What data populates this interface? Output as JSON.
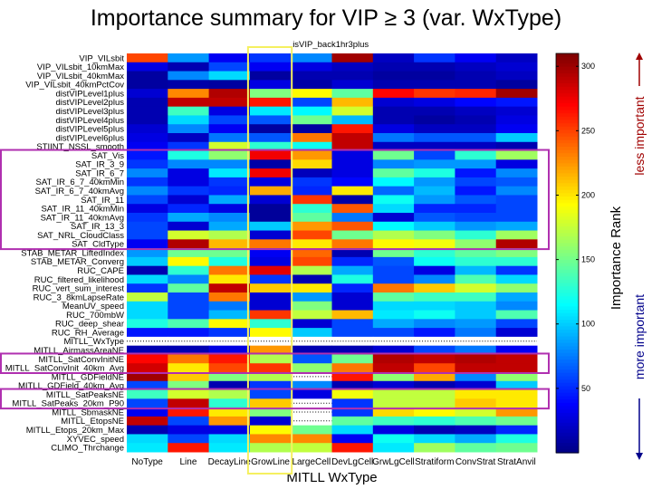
{
  "chart_data": {
    "type": "heatmap",
    "title": "Importance summary for VIP ≥ 3 (var. WxType)",
    "xlabel": "MITLL WxType",
    "colorbar_label": "Importance Rank",
    "colorbar_ticks": [
      300,
      250,
      200,
      150,
      100,
      50
    ],
    "colorbar_range": [
      0,
      310
    ],
    "colormap": "jet",
    "less_important_label": "less important",
    "more_important_label": "more important",
    "less_important_color": "#a00000",
    "more_important_color": "#00008b",
    "highlight_column_label": "isVIP_back1hr3plus",
    "highlight_column": "GrowLine",
    "highlight_column_color": "#f5f060",
    "highlight_rows_color": "#b030b0",
    "highlight_row_groups": [
      [
        "SAT_Vis",
        "SAT_CldType"
      ],
      [
        "MITLL_SatConvInitNE",
        "MITLL_SatConvInit_40km_Avg"
      ],
      [
        "MITLL_SatPeaksNE",
        "MITLL_SatPeaks_20km_P90"
      ]
    ],
    "columns": [
      "NoType",
      "Line",
      "DecayLine",
      "GrowLine",
      "LargeCell",
      "DevLgCell",
      "GrwLgCell",
      "Stratiform",
      "ConvStrat",
      "StratAnvil"
    ],
    "rows": [
      {
        "name": "VIP_VILsbit",
        "values": [
          250,
          85,
          35,
          55,
          80,
          300,
          20,
          55,
          35,
          20
        ]
      },
      {
        "name": "VIP_VILsbit_10kmMax",
        "values": [
          30,
          15,
          60,
          35,
          30,
          20,
          15,
          15,
          20,
          25
        ]
      },
      {
        "name": "VIP_VILsbit_40kmMax",
        "values": [
          10,
          80,
          105,
          10,
          15,
          15,
          10,
          10,
          15,
          20
        ]
      },
      {
        "name": "VIP_VILsbit_40kmPctCov",
        "values": [
          10,
          12,
          10,
          30,
          12,
          25,
          15,
          15,
          15,
          10
        ]
      },
      {
        "name": "distVIPLevel1plus",
        "values": [
          25,
          230,
          295,
          155,
          195,
          145,
          270,
          255,
          260,
          300
        ]
      },
      {
        "name": "distVIPLevel2plus",
        "values": [
          15,
          290,
          290,
          265,
          60,
          215,
          25,
          30,
          40,
          45
        ]
      },
      {
        "name": "distVIPLevel3plus",
        "values": [
          15,
          135,
          30,
          110,
          115,
          180,
          15,
          15,
          20,
          25
        ]
      },
      {
        "name": "distVIPLevel4plus",
        "values": [
          15,
          105,
          60,
          65,
          150,
          95,
          15,
          10,
          15,
          30
        ]
      },
      {
        "name": "distVIPLevel5plus",
        "values": [
          25,
          80,
          35,
          10,
          10,
          265,
          30,
          20,
          20,
          35
        ]
      },
      {
        "name": "distVIPLevel6plus",
        "values": [
          30,
          20,
          75,
          65,
          235,
          290,
          75,
          65,
          65,
          100
        ]
      },
      {
        "name": "STIINT_NSSL_smooth",
        "values": [
          35,
          55,
          180,
          130,
          120,
          290,
          20,
          20,
          20,
          15
        ]
      },
      {
        "name": "SAT_Vis",
        "values": [
          45,
          125,
          160,
          275,
          225,
          30,
          150,
          60,
          130,
          165
        ]
      },
      {
        "name": "SAT_IR_3_9",
        "values": [
          55,
          80,
          80,
          12,
          205,
          30,
          80,
          85,
          85,
          30
        ]
      },
      {
        "name": "SAT_IR_6_7",
        "values": [
          80,
          30,
          110,
          275,
          18,
          30,
          145,
          125,
          45,
          80
        ]
      },
      {
        "name": "SAT_IR_6_7_40kmMin",
        "values": [
          55,
          30,
          55,
          30,
          55,
          40,
          115,
          85,
          60,
          65
        ]
      },
      {
        "name": "SAT_IR_6_7_40kmAvg",
        "values": [
          80,
          55,
          50,
          220,
          50,
          200,
          70,
          95,
          45,
          80
        ]
      },
      {
        "name": "SAT_IR_11",
        "values": [
          60,
          25,
          90,
          25,
          255,
          12,
          120,
          85,
          65,
          60
        ]
      },
      {
        "name": "SAT_IR_11_40kmMin",
        "values": [
          30,
          50,
          30,
          8,
          130,
          245,
          105,
          50,
          50,
          60
        ]
      },
      {
        "name": "SAT_IR_11_40kmAvg",
        "values": [
          55,
          90,
          80,
          8,
          145,
          75,
          25,
          65,
          60,
          60
        ]
      },
      {
        "name": "SAT_IR_13_3",
        "values": [
          60,
          25,
          90,
          100,
          225,
          245,
          115,
          100,
          85,
          90
        ]
      },
      {
        "name": "SAT_NRL_CloudClass",
        "values": [
          60,
          180,
          170,
          25,
          250,
          150,
          170,
          155,
          130,
          165
        ]
      },
      {
        "name": "SAT_CldType",
        "values": [
          35,
          295,
          215,
          235,
          200,
          235,
          195,
          190,
          160,
          295
        ]
      },
      {
        "name": "STAB_METAR_LiftedIndex",
        "values": [
          85,
          150,
          150,
          35,
          240,
          15,
          150,
          130,
          145,
          155
        ]
      },
      {
        "name": "STAB_METAR_Converg",
        "values": [
          100,
          195,
          125,
          30,
          250,
          50,
          65,
          120,
          130,
          130
        ]
      },
      {
        "name": "RUC_CAPE",
        "values": [
          15,
          130,
          235,
          280,
          170,
          90,
          60,
          30,
          95,
          55
        ]
      },
      {
        "name": "RUC_filtered_likelihood",
        "values": [
          105,
          80,
          200,
          55,
          15,
          125,
          60,
          80,
          140,
          105
        ]
      },
      {
        "name": "RUC_vert_sum_interest",
        "values": [
          55,
          145,
          290,
          210,
          200,
          50,
          235,
          210,
          180,
          160
        ]
      },
      {
        "name": "RUC_3_8kmLapseRate",
        "values": [
          175,
          60,
          235,
          25,
          85,
          25,
          145,
          135,
          135,
          90
        ]
      },
      {
        "name": "MeanUV_speed",
        "values": [
          105,
          60,
          75,
          25,
          155,
          25,
          105,
          105,
          100,
          80
        ]
      },
      {
        "name": "RUC_700mbW",
        "values": [
          105,
          60,
          95,
          255,
          175,
          215,
          110,
          120,
          100,
          140
        ]
      },
      {
        "name": "RUC_deep_shear",
        "values": [
          125,
          140,
          195,
          130,
          25,
          60,
          90,
          80,
          85,
          60
        ]
      },
      {
        "name": "RUC_RH_Average",
        "values": [
          45,
          45,
          55,
          195,
          100,
          60,
          60,
          45,
          75,
          25
        ]
      },
      {
        "name": "MITLL_WxType",
        "values": [
          null,
          null,
          null,
          null,
          null,
          null,
          null,
          null,
          null,
          null
        ]
      },
      {
        "name": "MITLL_AirmassAreaNE",
        "values": [
          15,
          15,
          30,
          225,
          15,
          15,
          25,
          60,
          75,
          35
        ]
      },
      {
        "name": "MITLL_SatConvInitNE",
        "values": [
          270,
          235,
          265,
          170,
          65,
          150,
          295,
          290,
          295,
          290
        ]
      },
      {
        "name": "MITLL_SatConvInit_40km_Avg",
        "values": [
          285,
          200,
          250,
          255,
          160,
          235,
          290,
          250,
          290,
          290
        ]
      },
      {
        "name": "MITLL_GDFieldNE",
        "values": [
          300,
          210,
          155,
          170,
          null,
          265,
          160,
          220,
          80,
          160
        ]
      },
      {
        "name": "MITLL_GDField_40km_Avg",
        "values": [
          60,
          155,
          15,
          55,
          80,
          15,
          25,
          15,
          25,
          100
        ]
      },
      {
        "name": "MITLL_SatPeaksNE",
        "values": [
          135,
          180,
          170,
          60,
          30,
          190,
          175,
          175,
          200,
          200
        ]
      },
      {
        "name": "MITLL_SatPeaks_20km_P90",
        "values": [
          60,
          290,
          130,
          210,
          null,
          55,
          175,
          175,
          210,
          200
        ]
      },
      {
        "name": "MITLL_SbmaskNE",
        "values": [
          35,
          265,
          200,
          155,
          null,
          55,
          205,
          195,
          180,
          225
        ]
      },
      {
        "name": "MITLL_EtopsNE",
        "values": [
          290,
          60,
          225,
          25,
          null,
          145,
          135,
          130,
          140,
          150
        ]
      },
      {
        "name": "MITLL_Etops_20km_Max",
        "values": [
          15,
          30,
          30,
          195,
          150,
          105,
          30,
          15,
          20,
          50
        ]
      },
      {
        "name": "XYVEC_speed",
        "values": [
          105,
          60,
          105,
          230,
          230,
          35,
          120,
          105,
          90,
          125
        ]
      },
      {
        "name": "CLIMO_Thrchange",
        "values": [
          110,
          265,
          110,
          170,
          175,
          265,
          110,
          165,
          145,
          150
        ]
      }
    ]
  }
}
